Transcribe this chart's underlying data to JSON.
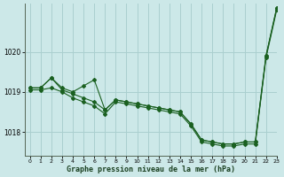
{
  "title": "Graphe pression niveau de la mer (hPa)",
  "background_color": "#cce8e8",
  "grid_color": "#aacfcf",
  "line_color": "#1a6020",
  "xlim": [
    -0.5,
    23
  ],
  "ylim": [
    1017.4,
    1021.2
  ],
  "xticks": [
    0,
    1,
    2,
    3,
    4,
    5,
    6,
    7,
    8,
    9,
    10,
    11,
    12,
    13,
    14,
    15,
    16,
    17,
    18,
    19,
    20,
    21,
    22,
    23
  ],
  "yticks": [
    1018,
    1019,
    1020
  ],
  "series": [
    {
      "x": [
        0,
        1,
        2,
        3,
        4,
        5,
        6,
        7,
        8,
        9,
        10,
        11,
        12,
        13,
        14,
        15,
        16,
        17,
        18,
        19,
        20,
        21,
        22,
        23
      ],
      "y": [
        1019.1,
        1019.1,
        1019.35,
        1019.05,
        1018.95,
        1018.85,
        1018.75,
        1018.55,
        1018.8,
        1018.75,
        1018.7,
        1018.65,
        1018.6,
        1018.55,
        1018.5,
        1018.2,
        1017.8,
        1017.75,
        1017.7,
        1017.7,
        1017.75,
        1017.75,
        1019.9,
        1021.1
      ]
    },
    {
      "x": [
        0,
        1,
        2,
        3,
        4,
        5,
        6,
        7,
        8,
        9,
        10,
        11,
        12,
        13,
        14,
        15,
        16,
        17,
        18,
        19,
        20,
        21,
        22,
        23
      ],
      "y": [
        1019.05,
        1019.05,
        1019.1,
        1019.0,
        1018.85,
        1018.75,
        1018.65,
        1018.45,
        1018.75,
        1018.7,
        1018.65,
        1018.6,
        1018.55,
        1018.5,
        1018.45,
        1018.15,
        1017.75,
        1017.7,
        1017.65,
        1017.65,
        1017.7,
        1017.7,
        1019.85,
        1021.05
      ]
    },
    {
      "x": [
        0,
        1,
        2,
        3,
        4,
        5,
        6,
        7,
        8,
        9,
        10,
        11,
        12,
        13,
        14,
        15,
        16,
        17,
        18,
        19,
        20,
        21,
        22,
        23
      ],
      "y": [
        1019.1,
        1019.1,
        1019.35,
        1019.1,
        1019.0,
        1019.15,
        1019.3,
        1018.55,
        1018.8,
        1018.75,
        1018.7,
        1018.65,
        1018.6,
        1018.55,
        1018.5,
        1018.2,
        1017.8,
        1017.75,
        1017.7,
        1017.7,
        1017.75,
        1017.75,
        1019.9,
        1021.1
      ]
    }
  ]
}
